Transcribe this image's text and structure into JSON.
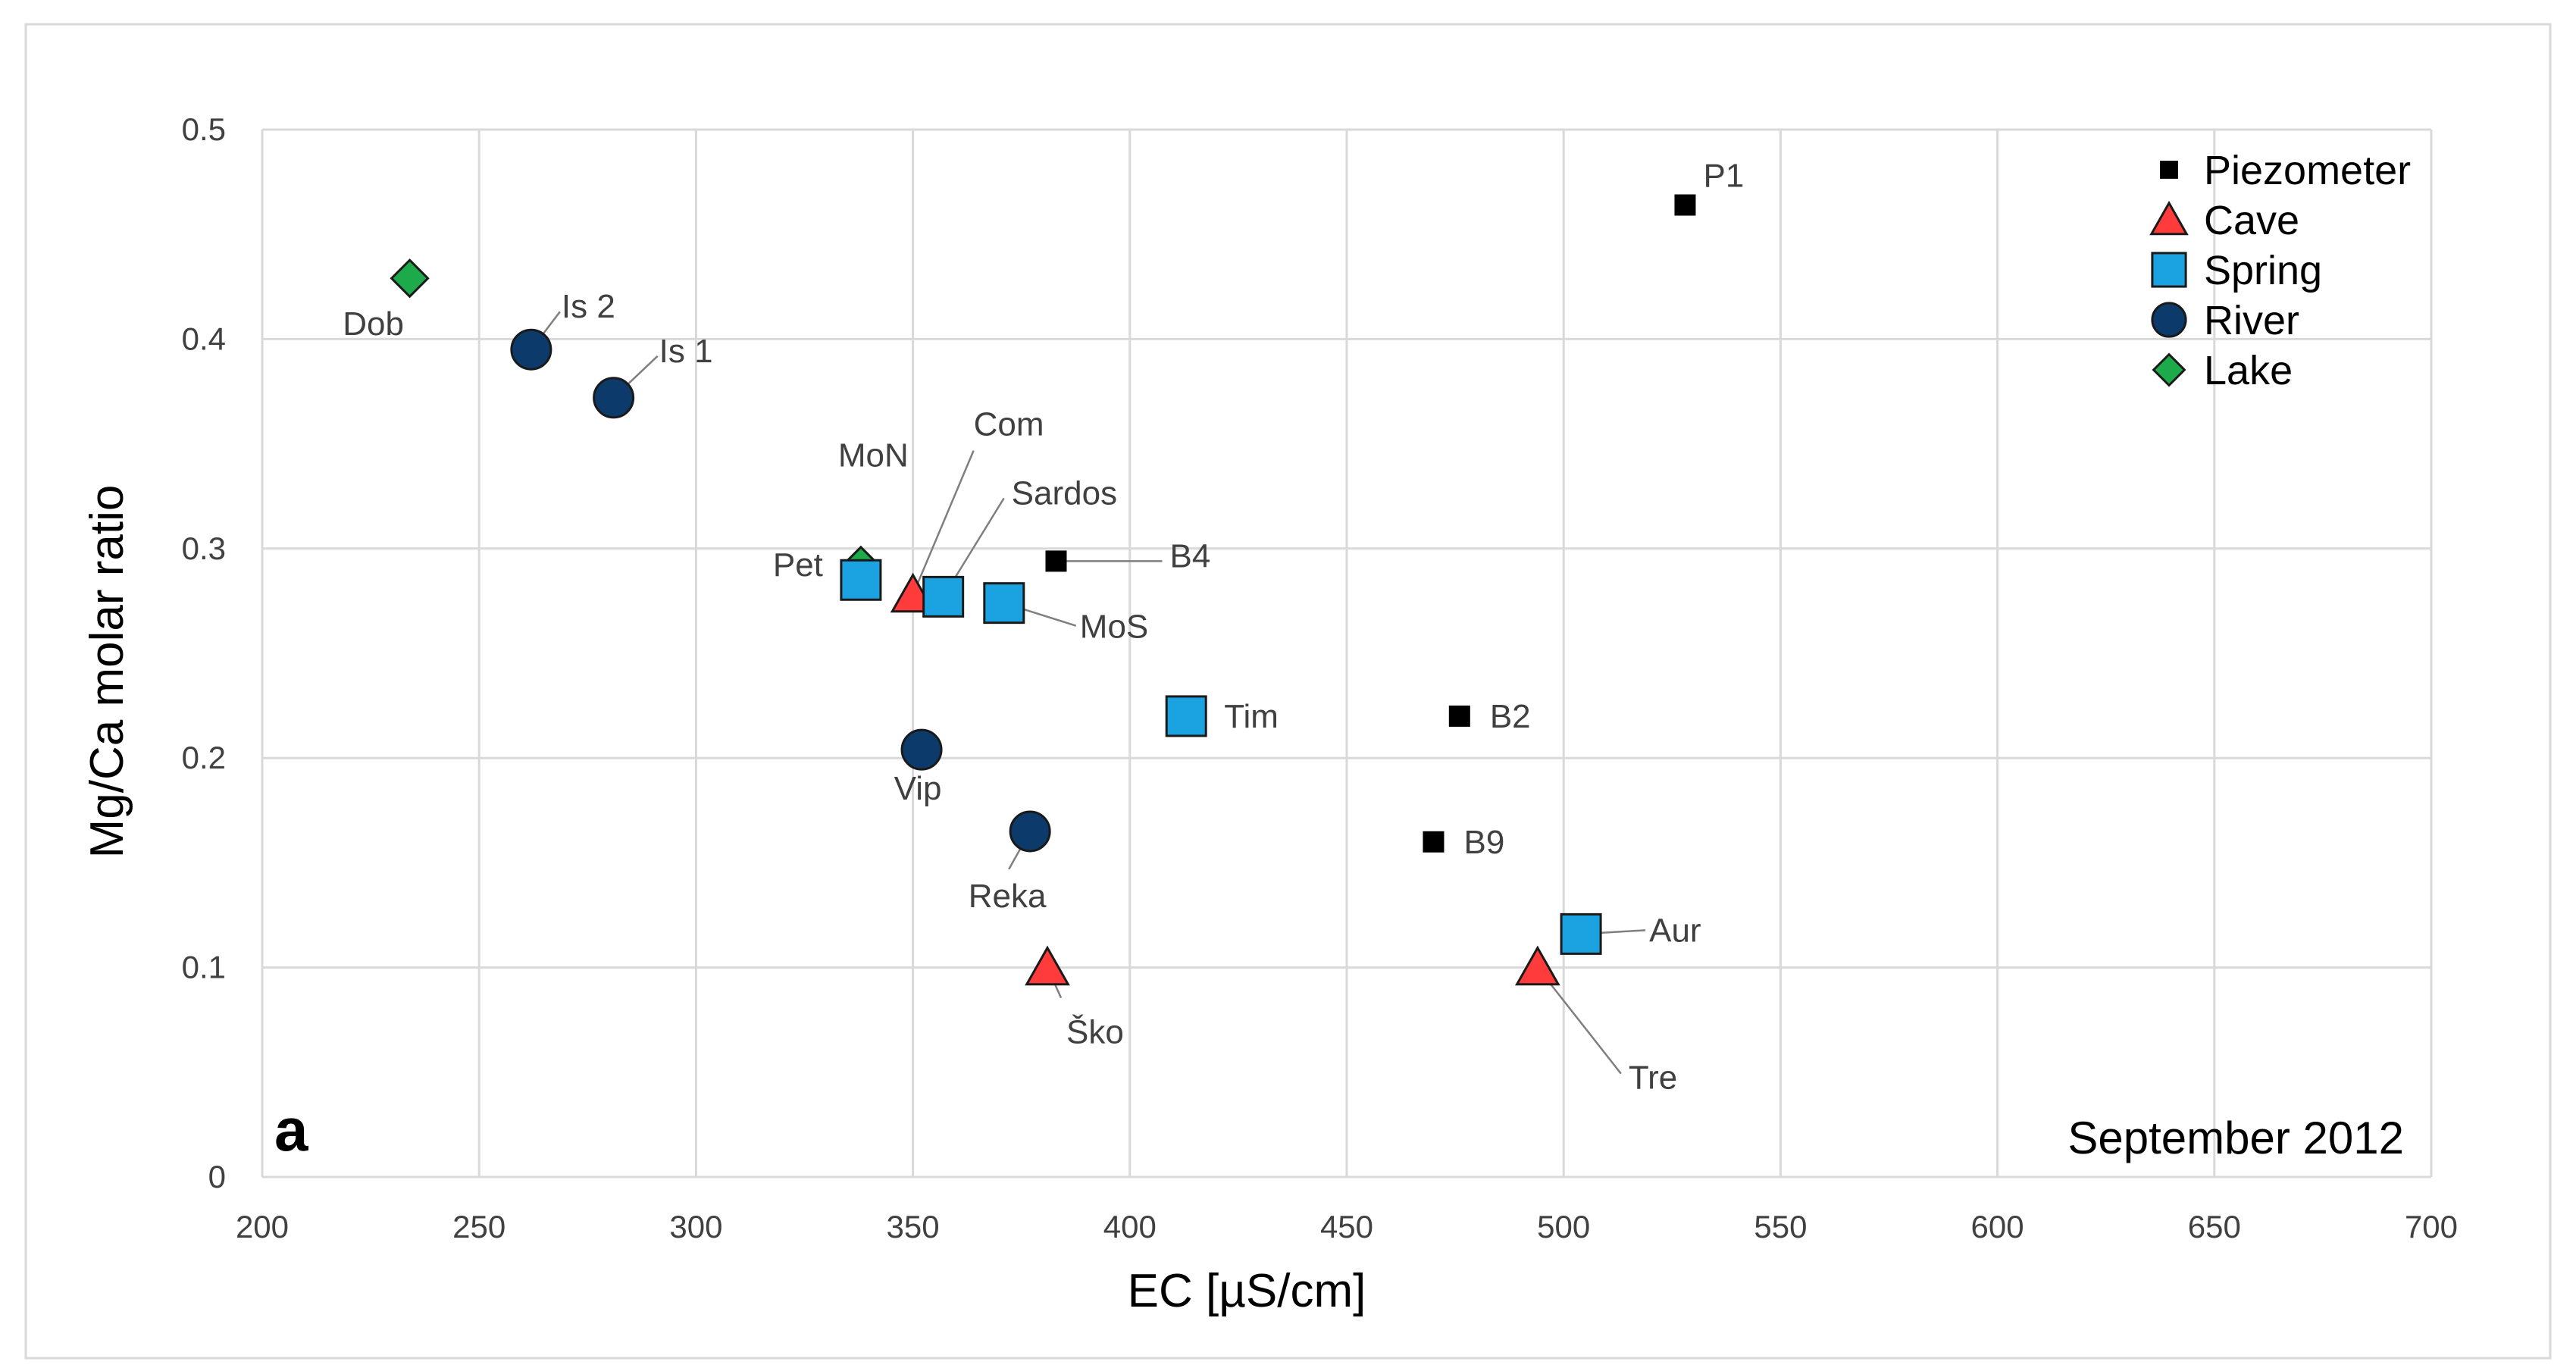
{
  "chart_data": {
    "type": "scatter",
    "panel_label": "a",
    "period_label": "September 2012",
    "xlabel": "EC [µS/cm]",
    "ylabel": "Mg/Ca molar ratio",
    "xlim": [
      200,
      700
    ],
    "ylim": [
      0,
      0.5
    ],
    "x_ticks": [
      200,
      250,
      300,
      350,
      400,
      450,
      500,
      550,
      600,
      650,
      700
    ],
    "y_ticks": [
      0,
      0.1,
      0.2,
      0.3,
      0.4,
      0.5
    ],
    "y_tick_labels": [
      "0",
      "0.1",
      "0.2",
      "0.3",
      "0.4",
      "0.5"
    ],
    "grid": true,
    "legend_position": "top-right",
    "colors": {
      "Piezometer": "#000000",
      "Cave": "#ff3b3b",
      "Spring": "#1aa3e0",
      "River": "#0b3a6b",
      "Lake": "#1daa4a"
    },
    "series": [
      {
        "name": "Piezometer",
        "marker": "square-small",
        "points": [
          {
            "label": "P1",
            "x": 528,
            "y": 0.464
          },
          {
            "label": "B4",
            "x": 383,
            "y": 0.294
          },
          {
            "label": "B2",
            "x": 476,
            "y": 0.22
          },
          {
            "label": "B9",
            "x": 470,
            "y": 0.16
          }
        ]
      },
      {
        "name": "Cave",
        "marker": "triangle",
        "points": [
          {
            "label": "Com",
            "x": 350,
            "y": 0.278
          },
          {
            "label": "Ško",
            "x": 381,
            "y": 0.1
          },
          {
            "label": "Tre",
            "x": 494,
            "y": 0.1
          }
        ]
      },
      {
        "name": "Spring",
        "marker": "square",
        "points": [
          {
            "label": "MoN",
            "x": 338,
            "y": 0.285
          },
          {
            "label": "Sardos",
            "x": 357,
            "y": 0.277
          },
          {
            "label": "MoS",
            "x": 371,
            "y": 0.274
          },
          {
            "label": "Tim",
            "x": 413,
            "y": 0.22
          },
          {
            "label": "Aur",
            "x": 504,
            "y": 0.116
          }
        ]
      },
      {
        "name": "River",
        "marker": "circle",
        "points": [
          {
            "label": "Is 2",
            "x": 262,
            "y": 0.395
          },
          {
            "label": "Is 1",
            "x": 281,
            "y": 0.372
          },
          {
            "label": "Vip",
            "x": 352,
            "y": 0.204
          },
          {
            "label": "Reka",
            "x": 377,
            "y": 0.165
          }
        ]
      },
      {
        "name": "Lake",
        "marker": "diamond",
        "points": [
          {
            "label": "Dob",
            "x": 234,
            "y": 0.429
          },
          {
            "label": "Pet",
            "x": 338,
            "y": 0.292
          }
        ]
      }
    ]
  }
}
